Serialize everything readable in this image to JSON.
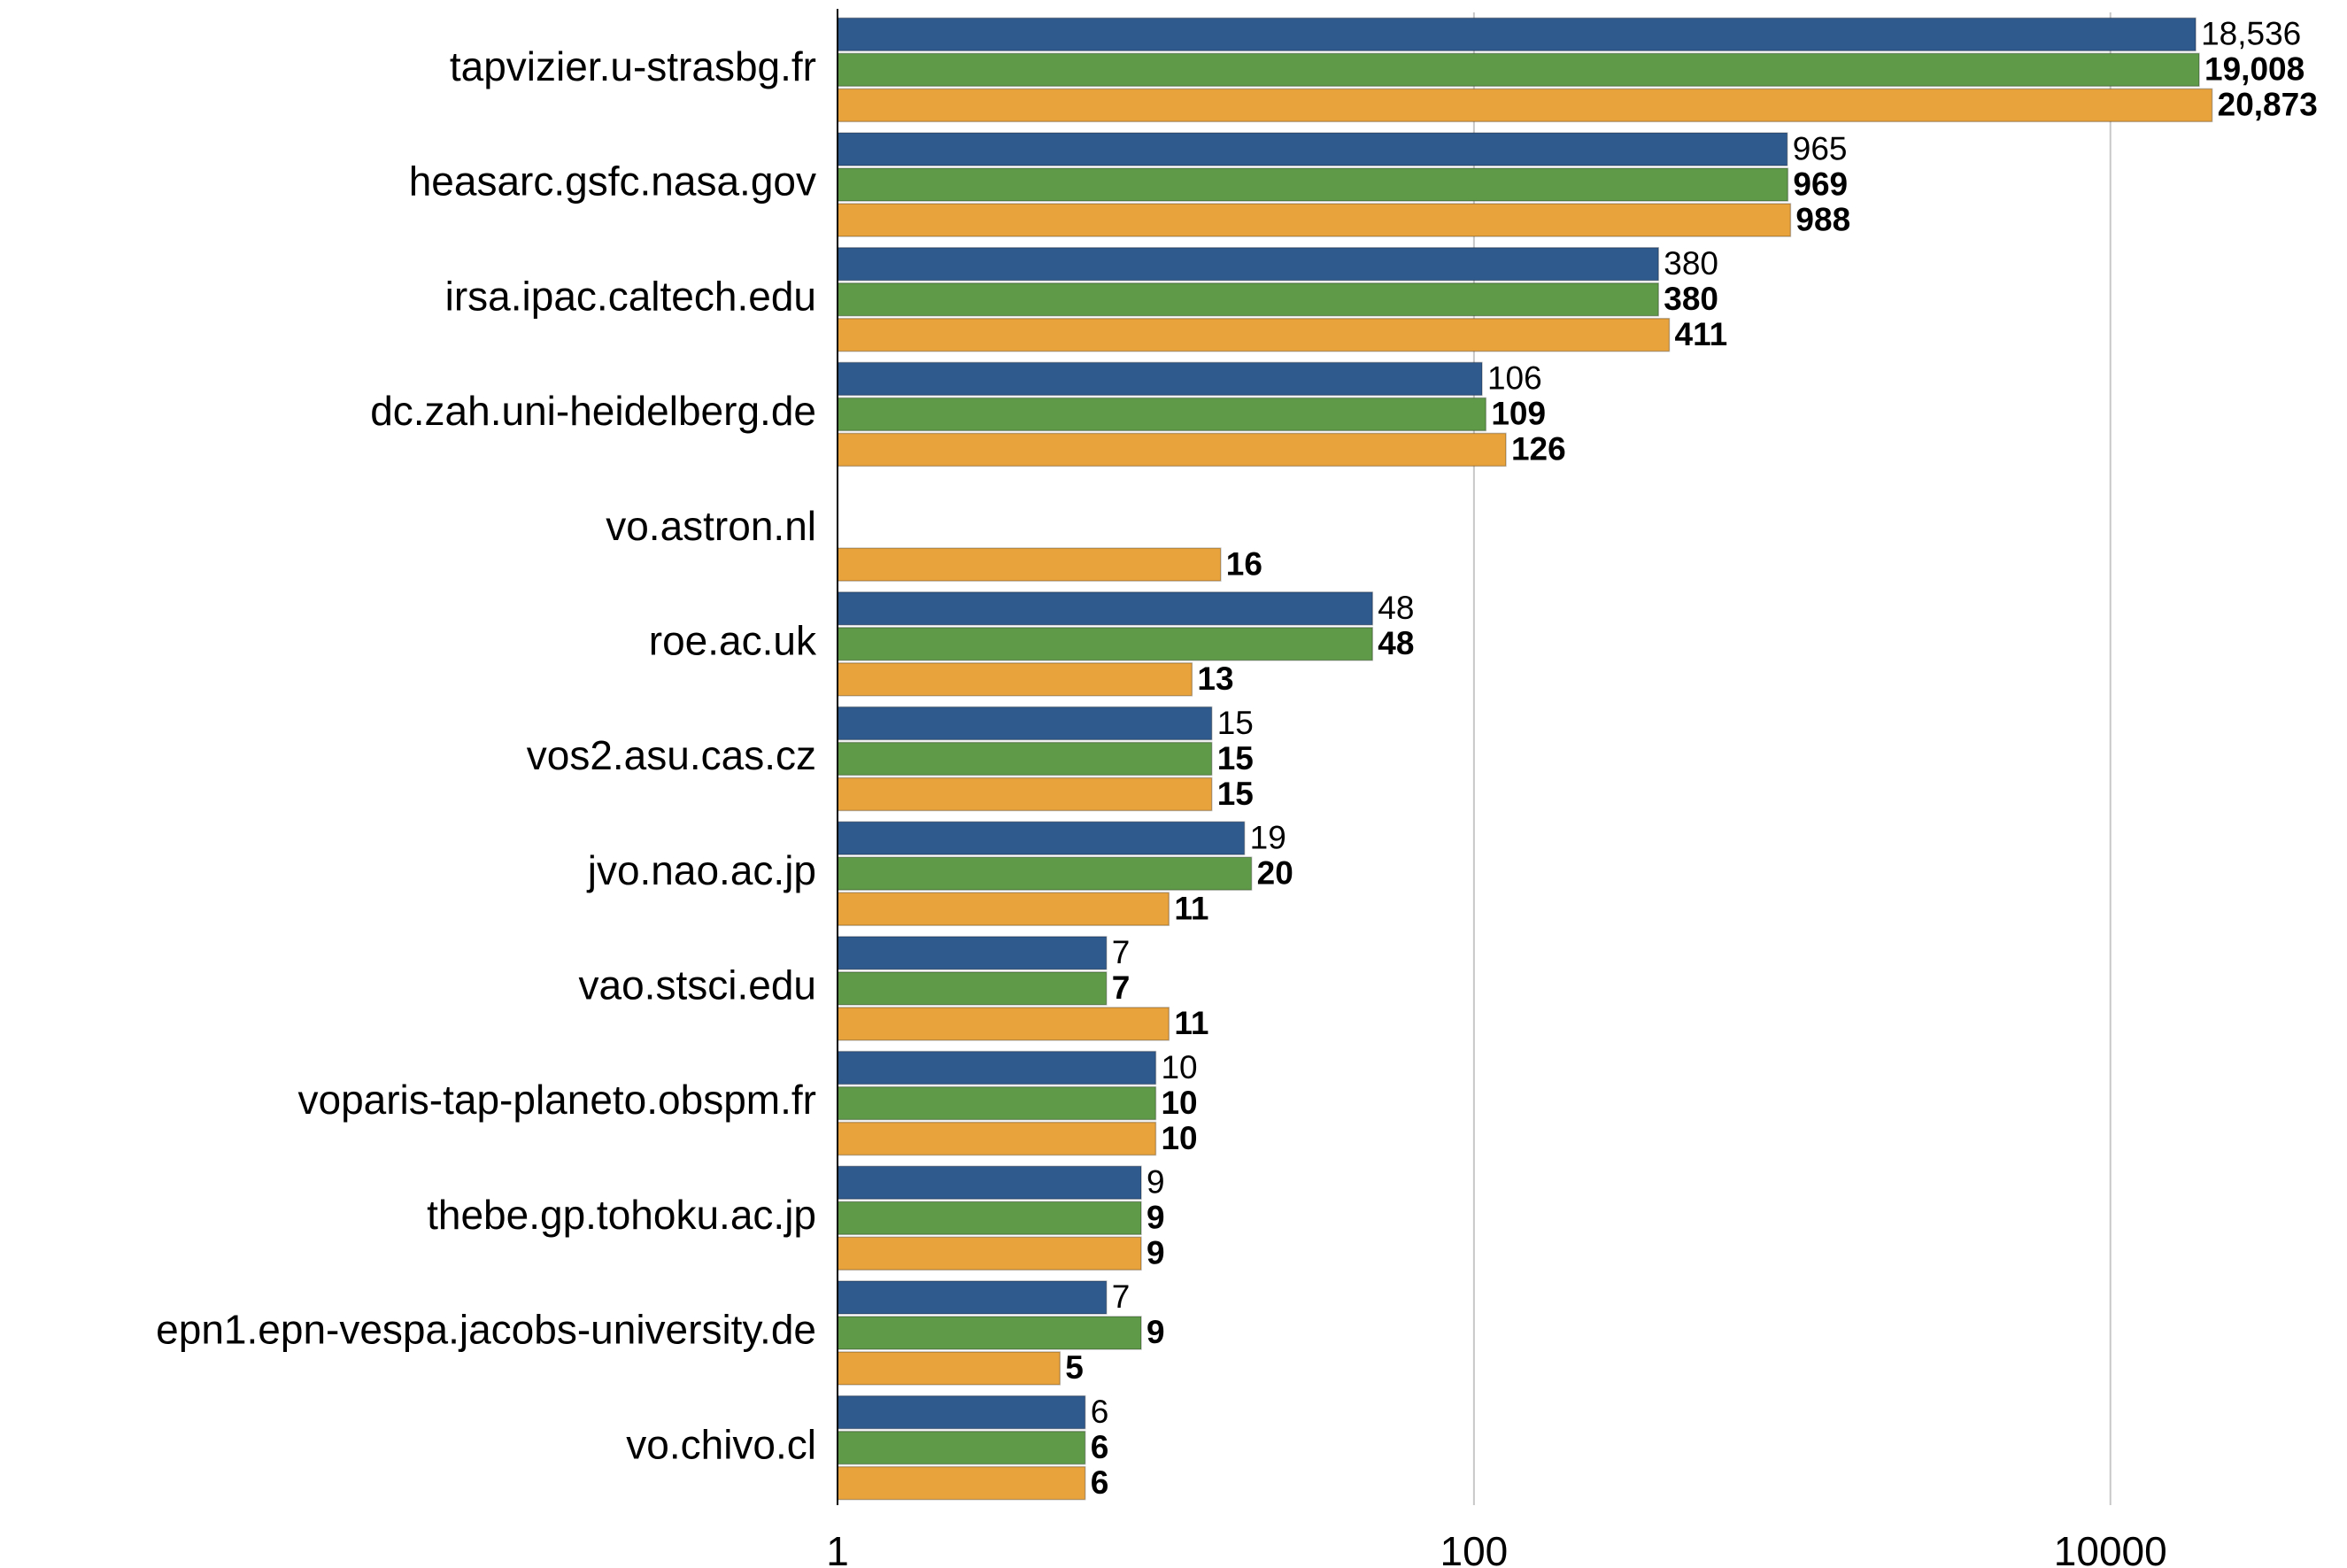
{
  "chart_data": {
    "type": "barh",
    "xscale": "log",
    "grid": true,
    "categories": [
      "tapvizier.u-strasbg.fr",
      "heasarc.gsfc.nasa.gov",
      "irsa.ipac.caltech.edu",
      "dc.zah.uni-heidelberg.de",
      "vo.astron.nl",
      "roe.ac.uk",
      "vos2.asu.cas.cz",
      "jvo.nao.ac.jp",
      "vao.stsci.edu",
      "voparis-tap-planeto.obspm.fr",
      "thebe.gp.tohoku.ac.jp",
      "epn1.epn-vespa.jacobs-university.de",
      "vo.chivo.cl"
    ],
    "series": [
      {
        "color": "#2f5a8e",
        "values": [
          18536,
          965,
          380,
          106,
          null,
          48,
          15,
          19,
          7,
          10,
          9,
          7,
          6
        ],
        "value_labels": [
          "18,536",
          "965",
          "380",
          "106",
          null,
          "48",
          "15",
          "19",
          "7",
          "10",
          "9",
          "7",
          "6"
        ]
      },
      {
        "color": "#5f9a49",
        "values": [
          19008,
          969,
          380,
          109,
          null,
          48,
          15,
          20,
          7,
          10,
          9,
          9,
          6
        ],
        "value_labels": [
          "19,008",
          "969",
          "380",
          "109",
          null,
          "48",
          "15",
          "20",
          "7",
          "10",
          "9",
          "9",
          "6"
        ]
      },
      {
        "color": "#e9a33c",
        "values": [
          20873,
          988,
          411,
          126,
          16,
          13,
          15,
          11,
          11,
          10,
          9,
          5,
          6
        ],
        "value_labels": [
          "20,873",
          "988",
          "411",
          "126",
          "16",
          "13",
          "15",
          "11",
          "11",
          "10",
          "9",
          "5",
          "6"
        ]
      }
    ],
    "xlim": [
      1,
      50000
    ],
    "xticks": [
      1,
      100,
      10000
    ]
  }
}
